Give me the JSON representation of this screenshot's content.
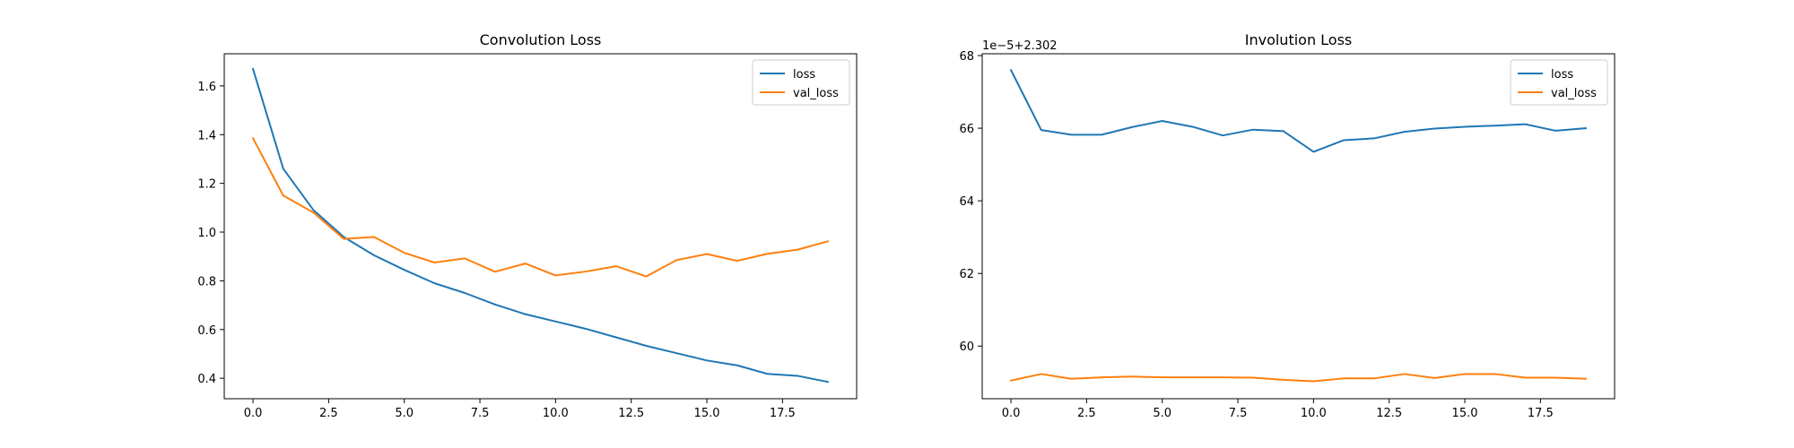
{
  "chart_data": [
    {
      "type": "line",
      "title": "Convolution Loss",
      "xlabel": "",
      "ylabel": "",
      "xlim": [
        -0.95,
        19.95
      ],
      "ylim": [
        0.316,
        1.732
      ],
      "xticks": [
        0.0,
        2.5,
        5.0,
        7.5,
        10.0,
        12.5,
        15.0,
        17.5
      ],
      "xtick_labels": [
        "0.0",
        "2.5",
        "5.0",
        "7.5",
        "10.0",
        "12.5",
        "15.0",
        "17.5"
      ],
      "yticks": [
        0.4,
        0.6,
        0.8,
        1.0,
        1.2,
        1.4,
        1.6
      ],
      "ytick_labels": [
        "0.4",
        "0.6",
        "0.8",
        "1.0",
        "1.2",
        "1.4",
        "1.6"
      ],
      "offset_label": "",
      "grid": false,
      "legend": "upper right",
      "x": [
        0,
        1,
        2,
        3,
        4,
        5,
        6,
        7,
        8,
        9,
        10,
        11,
        12,
        13,
        14,
        15,
        16,
        17,
        18,
        19
      ],
      "series": [
        {
          "name": "loss",
          "color": "#1f77b4",
          "values": [
            1.67,
            1.26,
            1.09,
            0.98,
            0.905,
            0.845,
            0.79,
            0.75,
            0.703,
            0.663,
            0.633,
            0.603,
            0.568,
            0.533,
            0.503,
            0.473,
            0.453,
            0.418,
            0.41,
            0.385
          ]
        },
        {
          "name": "val_loss",
          "color": "#ff7f0e",
          "values": [
            1.385,
            1.15,
            1.08,
            0.972,
            0.98,
            0.915,
            0.875,
            0.892,
            0.837,
            0.871,
            0.822,
            0.838,
            0.86,
            0.818,
            0.885,
            0.91,
            0.882,
            0.911,
            0.928,
            0.962
          ]
        }
      ]
    },
    {
      "type": "line",
      "title": "Involution Loss",
      "xlabel": "",
      "ylabel": "",
      "xlim": [
        -0.95,
        19.95
      ],
      "ylim": [
        58.55,
        68.05
      ],
      "xticks": [
        0.0,
        2.5,
        5.0,
        7.5,
        10.0,
        12.5,
        15.0,
        17.5
      ],
      "xtick_labels": [
        "0.0",
        "2.5",
        "5.0",
        "7.5",
        "10.0",
        "12.5",
        "15.0",
        "17.5"
      ],
      "yticks": [
        60,
        62,
        64,
        66,
        68
      ],
      "ytick_labels": [
        "60",
        "62",
        "64",
        "66",
        "68"
      ],
      "offset_label": "1e−5+2.302",
      "grid": false,
      "legend": "upper right",
      "x": [
        0,
        1,
        2,
        3,
        4,
        5,
        6,
        7,
        8,
        9,
        10,
        11,
        12,
        13,
        14,
        15,
        16,
        17,
        18,
        19
      ],
      "series": [
        {
          "name": "loss",
          "color": "#1f77b4",
          "values": [
            67.6,
            65.95,
            65.82,
            65.82,
            66.03,
            66.2,
            66.04,
            65.8,
            65.96,
            65.92,
            65.35,
            65.67,
            65.72,
            65.9,
            65.99,
            66.04,
            66.07,
            66.11,
            65.93,
            66.0
          ]
        },
        {
          "name": "val_loss",
          "color": "#ff7f0e",
          "values": [
            59.05,
            59.23,
            59.1,
            59.14,
            59.16,
            59.14,
            59.14,
            59.14,
            59.13,
            59.07,
            59.03,
            59.11,
            59.11,
            59.23,
            59.12,
            59.23,
            59.23,
            59.13,
            59.13,
            59.1
          ]
        }
      ]
    }
  ]
}
